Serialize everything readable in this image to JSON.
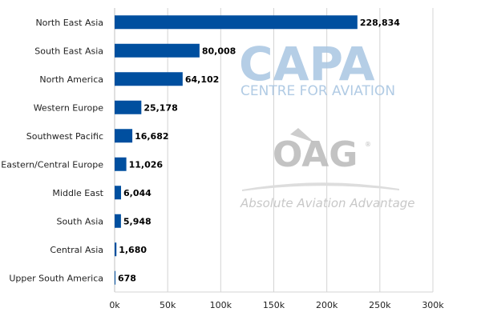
{
  "chart_data": {
    "type": "bar",
    "orientation": "horizontal",
    "categories": [
      "North East Asia",
      "South East Asia",
      "North America",
      "Western Europe",
      "Southwest Pacific",
      "Eastern/Central Europe",
      "Middle East",
      "South Asia",
      "Central Asia",
      "Upper South America"
    ],
    "values": [
      228834,
      80008,
      64102,
      25178,
      16682,
      11026,
      6044,
      5948,
      1680,
      678
    ],
    "data_labels": [
      "228,834",
      "80,008",
      "64,102",
      "25,178",
      "16,682",
      "11,026",
      "6,044",
      "5,948",
      "1,680",
      "678"
    ],
    "xlim": [
      0,
      300000
    ],
    "x_ticks": [
      0,
      50000,
      100000,
      150000,
      200000,
      250000,
      300000
    ],
    "x_tick_labels": [
      "0k",
      "50k",
      "100k",
      "150k",
      "200k",
      "250k",
      "300k"
    ],
    "grid": true,
    "bar_color": "#004f9f",
    "title": "",
    "xlabel": "",
    "ylabel": ""
  },
  "watermarks": {
    "capa": {
      "title": "CAPA",
      "subtitle": "CENTRE FOR AVIATION",
      "color": "#a9c6e2"
    },
    "oag": {
      "title": "OAG",
      "subtitle": "Absolute Aviation Advantage",
      "color": "#b9b9b9"
    }
  }
}
